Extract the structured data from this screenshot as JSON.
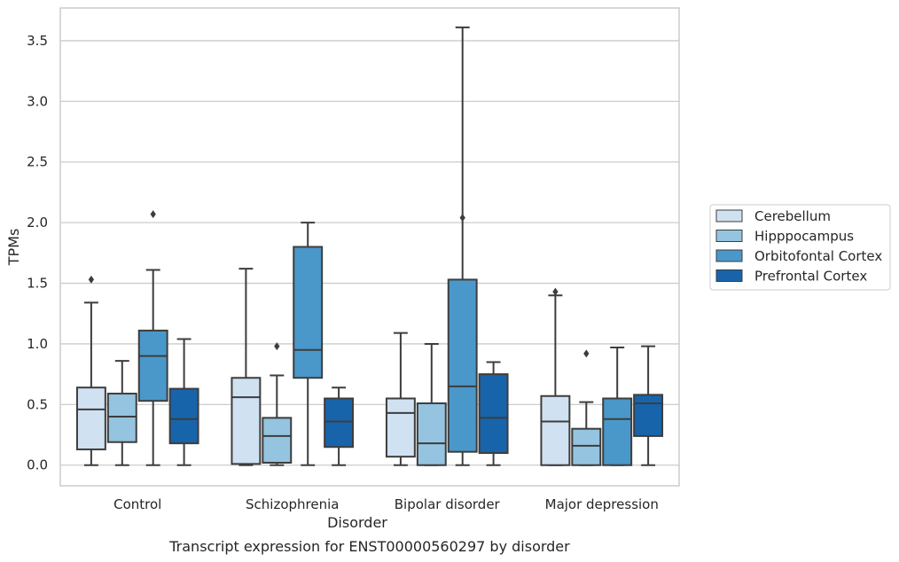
{
  "chart_data": {
    "type": "boxplot",
    "title": "",
    "xlabel": "Disorder",
    "ylabel": "TPMs",
    "caption": "Transcript expression for ENST00000560297 by disorder",
    "ylim": [
      -0.17,
      3.77
    ],
    "yticks": [
      "0.0",
      "0.5",
      "1.0",
      "1.5",
      "2.0",
      "2.5",
      "3.0",
      "3.5"
    ],
    "grid": "horizontal",
    "legend_position": "right",
    "categories": [
      "Control",
      "Schizophrenia",
      "Bipolar disorder",
      "Major depression"
    ],
    "series": [
      {
        "name": "Cerebellum",
        "color": "#d0e1f2",
        "boxes": [
          {
            "whislo": 0.0,
            "q1": 0.13,
            "med": 0.46,
            "q3": 0.64,
            "whishi": 1.34,
            "fliers": [
              1.53
            ]
          },
          {
            "whislo": 0.0,
            "q1": 0.01,
            "med": 0.56,
            "q3": 0.72,
            "whishi": 1.62,
            "fliers": []
          },
          {
            "whislo": 0.0,
            "q1": 0.07,
            "med": 0.43,
            "q3": 0.55,
            "whishi": 1.09,
            "fliers": []
          },
          {
            "whislo": 0.0,
            "q1": 0.0,
            "med": 0.36,
            "q3": 0.57,
            "whishi": 1.4,
            "fliers": [
              1.43
            ]
          }
        ]
      },
      {
        "name": "Hipppocampus",
        "color": "#94c4df",
        "boxes": [
          {
            "whislo": 0.0,
            "q1": 0.19,
            "med": 0.4,
            "q3": 0.59,
            "whishi": 0.86,
            "fliers": []
          },
          {
            "whislo": 0.0,
            "q1": 0.02,
            "med": 0.24,
            "q3": 0.39,
            "whishi": 0.74,
            "fliers": [
              0.98
            ]
          },
          {
            "whislo": 0.0,
            "q1": 0.0,
            "med": 0.18,
            "q3": 0.51,
            "whishi": 1.0,
            "fliers": []
          },
          {
            "whislo": 0.0,
            "q1": 0.0,
            "med": 0.16,
            "q3": 0.3,
            "whishi": 0.52,
            "fliers": [
              0.92
            ]
          }
        ]
      },
      {
        "name": "Orbitofontal Cortex",
        "color": "#4a98c9",
        "boxes": [
          {
            "whislo": 0.0,
            "q1": 0.53,
            "med": 0.9,
            "q3": 1.11,
            "whishi": 1.61,
            "fliers": [
              2.07
            ]
          },
          {
            "whislo": 0.0,
            "q1": 0.72,
            "med": 0.95,
            "q3": 1.8,
            "whishi": 2.0,
            "fliers": []
          },
          {
            "whislo": 0.0,
            "q1": 0.11,
            "med": 0.65,
            "q3": 1.53,
            "whishi": 3.61,
            "fliers": [
              2.04
            ]
          },
          {
            "whislo": 0.0,
            "q1": 0.0,
            "med": 0.38,
            "q3": 0.55,
            "whishi": 0.97,
            "fliers": []
          }
        ]
      },
      {
        "name": "Prefrontal Cortex",
        "color": "#1764ab",
        "boxes": [
          {
            "whislo": 0.0,
            "q1": 0.18,
            "med": 0.38,
            "q3": 0.63,
            "whishi": 1.04,
            "fliers": []
          },
          {
            "whislo": 0.0,
            "q1": 0.15,
            "med": 0.36,
            "q3": 0.55,
            "whishi": 0.64,
            "fliers": []
          },
          {
            "whislo": 0.0,
            "q1": 0.1,
            "med": 0.39,
            "q3": 0.75,
            "whishi": 0.85,
            "fliers": []
          },
          {
            "whislo": 0.0,
            "q1": 0.24,
            "med": 0.51,
            "q3": 0.58,
            "whishi": 0.98,
            "fliers": []
          }
        ]
      }
    ]
  }
}
